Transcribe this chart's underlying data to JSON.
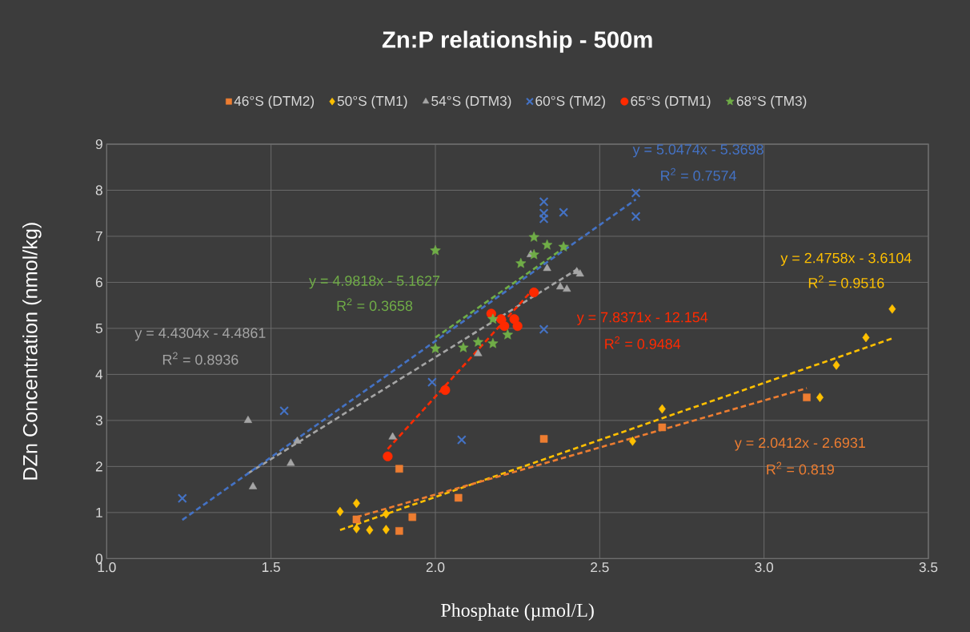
{
  "chart_data": {
    "type": "scatter",
    "title": "Zn:P relationship - 500m",
    "xlabel": "Phosphate (µmol/L)",
    "ylabel": "DZn Concentration (nmol/kg)",
    "xlim": [
      1.0,
      3.5
    ],
    "xticks": [
      {
        "value": 1.0,
        "label": "1.0"
      },
      {
        "value": 1.5,
        "label": "1.5"
      },
      {
        "value": 2.0,
        "label": "2.0"
      },
      {
        "value": 2.5,
        "label": "2.5"
      },
      {
        "value": 3.0,
        "label": "3.0"
      },
      {
        "value": 3.5,
        "label": "3.5"
      }
    ],
    "ylim": [
      0,
      9
    ],
    "yticks": [
      0,
      1,
      2,
      3,
      4,
      5,
      6,
      7,
      8,
      9
    ],
    "grid": true,
    "legend": "top",
    "series": [
      {
        "name": "46°S (DTM2)",
        "color": "#ed7d31",
        "marker": "square",
        "x": [
          1.76,
          1.89,
          1.89,
          1.93,
          2.07,
          2.33,
          2.69,
          3.13
        ],
        "values": [
          0.85,
          0.6,
          1.95,
          0.9,
          1.32,
          2.6,
          2.85,
          3.5
        ]
      },
      {
        "name": "50°S (TM1)",
        "color": "#ffc000",
        "marker": "diamond",
        "x": [
          1.71,
          1.76,
          1.76,
          1.8,
          1.85,
          1.85,
          2.6,
          2.69,
          3.17,
          3.22,
          3.31,
          3.39
        ],
        "values": [
          1.02,
          1.2,
          0.65,
          0.62,
          0.97,
          0.63,
          2.55,
          3.25,
          3.5,
          4.2,
          4.8,
          5.42
        ]
      },
      {
        "name": "54°S (DTM3)",
        "color": "#a5a5a5",
        "marker": "triangle",
        "x": [
          1.43,
          1.445,
          1.56,
          1.58,
          1.87,
          2.13,
          2.29,
          2.34,
          2.38,
          2.4,
          2.43,
          2.44
        ],
        "values": [
          3.0,
          1.56,
          2.07,
          2.55,
          2.64,
          4.45,
          6.6,
          6.3,
          5.9,
          5.85,
          6.23,
          6.18
        ]
      },
      {
        "name": "60°S (TM2)",
        "color": "#4472c4",
        "marker": "cross",
        "x": [
          1.23,
          1.54,
          1.99,
          2.08,
          2.33,
          2.33,
          2.33,
          2.39,
          2.33,
          2.61,
          2.61
        ],
        "values": [
          1.31,
          3.21,
          3.83,
          2.58,
          7.75,
          7.5,
          7.38,
          7.52,
          4.98,
          7.94,
          7.43
        ]
      },
      {
        "name": "65°S (DTM1)",
        "color": "#ff2a00",
        "marker": "circle",
        "x": [
          1.855,
          2.03,
          2.17,
          2.2,
          2.21,
          2.24,
          2.25,
          2.3
        ],
        "values": [
          2.22,
          3.66,
          5.32,
          5.2,
          5.05,
          5.2,
          5.05,
          5.78
        ]
      },
      {
        "name": "68°S (TM3)",
        "color": "#70ad47",
        "marker": "star",
        "x": [
          2.0,
          2.0,
          2.085,
          2.13,
          2.175,
          2.175,
          2.22,
          2.26,
          2.3,
          2.3,
          2.34,
          2.39
        ],
        "values": [
          6.69,
          4.56,
          4.58,
          4.7,
          4.67,
          5.2,
          4.86,
          6.41,
          6.98,
          6.6,
          6.81,
          6.77
        ]
      },
      {
        "type": "line",
        "color": "#a5a5a5",
        "line_style": "dashed",
        "marker": "none",
        "x": [
          1.43,
          2.44
        ],
        "values": [
          1.85,
          6.32
        ]
      },
      {
        "type": "line",
        "color": "#70ad47",
        "line_style": "dashed",
        "marker": "none",
        "x": [
          2.0,
          2.39
        ],
        "values": [
          4.8,
          6.74
        ]
      },
      {
        "type": "line",
        "color": "#4472c4",
        "line_style": "dashed",
        "marker": "none",
        "x": [
          1.23,
          2.61
        ],
        "values": [
          0.84,
          7.8
        ]
      },
      {
        "type": "line",
        "color": "#ff2a00",
        "line_style": "dashed",
        "marker": "none",
        "x": [
          1.855,
          2.3
        ],
        "values": [
          2.38,
          5.87
        ]
      },
      {
        "type": "line",
        "color": "#ffc000",
        "line_style": "dashed",
        "marker": "none",
        "x": [
          1.71,
          3.39
        ],
        "values": [
          0.62,
          4.78
        ]
      },
      {
        "type": "line",
        "color": "#ed7d31",
        "line_style": "dashed",
        "marker": "none",
        "x": [
          1.76,
          3.13
        ],
        "values": [
          0.9,
          3.7
        ]
      }
    ],
    "annotations": [
      "y = 4.4304x - 4.4861",
      "R$^{2}$ = 0.8936",
      "y = 4.9818x - 5.1627",
      "R$^{2}$ = 0.3658",
      "y = 5.0474x - 5.3698",
      "R$^{2}$ = 0.7574",
      "y = 7.8371x - 12.154",
      "R$^{2}$ = 0.9484",
      "y = 2.4758x - 3.6104",
      "R$^{2}$ = 0.9516",
      "y = 2.0412x - 2.6931",
      "R$^{2}$ = 0.819"
    ]
  }
}
